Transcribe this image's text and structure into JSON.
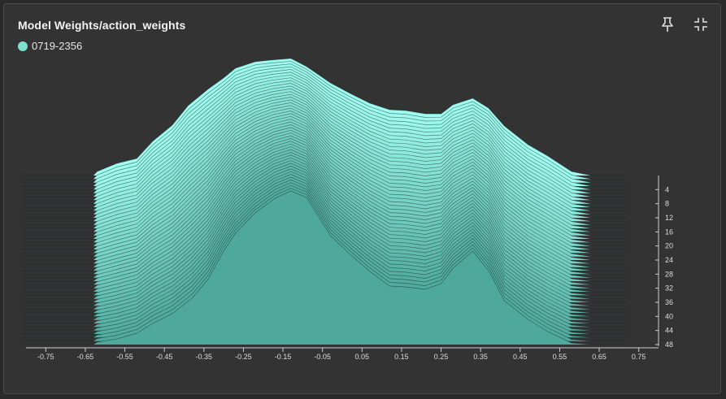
{
  "card": {
    "title": "Model Weights/action_weights",
    "legend": {
      "label": "0719-2356",
      "color": "#7fe0d0"
    }
  },
  "icons": {
    "pin": "pin-icon",
    "exit_fullscreen": "exit-fullscreen-icon"
  },
  "chart_data": {
    "type": "area",
    "title": "Model Weights/action_weights",
    "xlabel": "",
    "ylabel": "",
    "xlim": [
      -0.8,
      0.8
    ],
    "x_ticks": [
      "-0.75",
      "-0.65",
      "-0.55",
      "-0.45",
      "-0.35",
      "-0.25",
      "-0.15",
      "-0.05",
      "0.05",
      "0.15",
      "0.25",
      "0.35",
      "0.45",
      "0.55",
      "0.65",
      "0.75"
    ],
    "step_ticks": [
      "4",
      "8",
      "12",
      "16",
      "20",
      "24",
      "28",
      "32",
      "36",
      "40",
      "44",
      "48"
    ],
    "steps": [
      0,
      48
    ],
    "profiles": [
      {
        "step": 0,
        "x": [
          -0.81,
          -0.63,
          -0.62,
          -0.57,
          -0.52,
          -0.48,
          -0.43,
          -0.39,
          -0.34,
          -0.3,
          -0.27,
          -0.22,
          -0.18,
          -0.13,
          -0.09,
          -0.03,
          0.02,
          0.07,
          0.12,
          0.16,
          0.21,
          0.25,
          0.28,
          0.33,
          0.37,
          0.41,
          0.47,
          0.52,
          0.58,
          0.63,
          0.72
        ],
        "density": [
          0.0,
          0.0,
          1.31,
          3.96,
          5.55,
          11.09,
          16.37,
          22.71,
          27.99,
          31.68,
          34.85,
          36.96,
          37.49,
          38.01,
          35.37,
          30.09,
          26.65,
          23.49,
          21.37,
          21.11,
          20.06,
          20.06,
          22.97,
          25.08,
          21.9,
          16.1,
          10.02,
          6.34,
          1.31,
          0.0,
          0.0
        ]
      },
      {
        "step": 48,
        "x": [
          -0.81,
          -0.63,
          -0.62,
          -0.57,
          -0.52,
          -0.48,
          -0.43,
          -0.38,
          -0.34,
          -0.3,
          -0.27,
          -0.22,
          -0.17,
          -0.13,
          -0.09,
          -0.03,
          0.02,
          0.07,
          0.12,
          0.16,
          0.21,
          0.25,
          0.28,
          0.33,
          0.37,
          0.41,
          0.47,
          0.52,
          0.58,
          0.63,
          0.72
        ],
        "density": [
          0.0,
          0.0,
          0.79,
          1.85,
          3.69,
          6.87,
          10.03,
          15.04,
          21.11,
          30.35,
          36.17,
          42.77,
          47.5,
          49.89,
          47.76,
          35.37,
          29.29,
          23.75,
          19.0,
          18.73,
          17.94,
          19.79,
          24.81,
          30.35,
          24.02,
          14.25,
          8.18,
          4.22,
          0.53,
          0.0,
          0.0
        ]
      }
    ]
  }
}
